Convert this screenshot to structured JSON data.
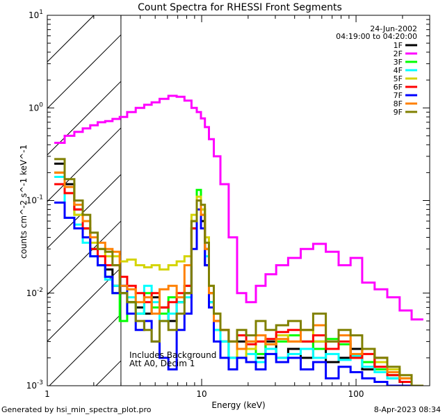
{
  "chart_data": {
    "type": "line",
    "title": "Count Spectra for RHESSI Front Segments",
    "xlabel": "Energy (keV)",
    "ylabel": "counts cm^-2 s^-1 keV^-1",
    "ylabel_parts": {
      "a": "counts cm",
      "e1": "-2",
      "b": " s",
      "e2": "-1",
      "c": " keV",
      "e3": "-1"
    },
    "xscale": "log",
    "yscale": "log",
    "xlim": [
      1,
      300
    ],
    "ylim": [
      0.001,
      10
    ],
    "x_ticks": [
      {
        "value": 1,
        "label": "1"
      },
      {
        "value": 10,
        "label": "10"
      },
      {
        "value": 100,
        "label": "100"
      }
    ],
    "y_ticks": [
      {
        "value": 0.001,
        "base": "10",
        "exp": "-3"
      },
      {
        "value": 0.01,
        "base": "10",
        "exp": "-2"
      },
      {
        "value": 0.1,
        "base": "10",
        "exp": "-1"
      },
      {
        "value": 1,
        "base": "10",
        "exp": "0"
      },
      {
        "value": 10,
        "base": "10",
        "exp": "1"
      }
    ],
    "excluded_region_keV": [
      1,
      3
    ],
    "legend_position": "top-right",
    "date": "24-Jun-2002",
    "time_range": "04:19:00 to 04:20:00",
    "annotations": [
      "Includes Background",
      "Att A0, Decim 1"
    ],
    "energy": [
      1.2,
      1.4,
      1.6,
      1.8,
      2.0,
      2.25,
      2.5,
      2.8,
      3.1,
      3.5,
      4.0,
      4.5,
      5.0,
      5.7,
      6.5,
      7.3,
      8.2,
      9.0,
      9.6,
      10.2,
      10.8,
      11.5,
      12.5,
      14,
      16,
      18,
      21,
      24,
      28,
      33,
      40,
      48,
      58,
      70,
      85,
      100,
      120,
      145,
      175,
      210,
      250
    ],
    "series": [
      {
        "name": "1F",
        "color": "#000000",
        "values": [
          0.25,
          0.15,
          0.08,
          0.05,
          0.03,
          0.02,
          0.018,
          0.012,
          0.01,
          0.008,
          0.007,
          0.006,
          0.009,
          0.007,
          0.005,
          0.008,
          0.01,
          0.05,
          0.1,
          0.06,
          0.02,
          0.008,
          0.005,
          0.003,
          0.002,
          0.003,
          0.0025,
          0.002,
          0.003,
          0.002,
          0.0025,
          0.002,
          0.003,
          0.0018,
          0.002,
          0.0025,
          0.0015,
          0.002,
          0.0012,
          0.0011,
          0.001
        ]
      },
      {
        "name": "2F",
        "color": "#ff00ff",
        "values": [
          0.42,
          0.5,
          0.55,
          0.6,
          0.65,
          0.7,
          0.72,
          0.76,
          0.8,
          0.9,
          1.0,
          1.08,
          1.15,
          1.25,
          1.35,
          1.32,
          1.2,
          1.0,
          0.9,
          0.77,
          0.62,
          0.46,
          0.3,
          0.15,
          0.04,
          0.01,
          0.008,
          0.012,
          0.016,
          0.02,
          0.024,
          0.03,
          0.034,
          0.028,
          0.02,
          0.024,
          0.013,
          0.011,
          0.009,
          0.0065,
          0.0052
        ]
      },
      {
        "name": "3F",
        "color": "#00ff00",
        "values": [
          0.2,
          0.14,
          0.07,
          0.05,
          0.03,
          0.02,
          0.015,
          0.01,
          0.005,
          0.008,
          0.006,
          0.01,
          0.007,
          0.006,
          0.009,
          0.008,
          0.012,
          0.06,
          0.13,
          0.08,
          0.03,
          0.01,
          0.004,
          0.003,
          0.002,
          0.0025,
          0.003,
          0.0022,
          0.0028,
          0.003,
          0.0035,
          0.003,
          0.0025,
          0.0032,
          0.0028,
          0.002,
          0.0018,
          0.0015,
          0.0013,
          0.0012,
          0.001
        ]
      },
      {
        "name": "4F",
        "color": "#00ffff",
        "values": [
          0.18,
          0.065,
          0.055,
          0.035,
          0.025,
          0.02,
          0.014,
          0.012,
          0.012,
          0.009,
          0.006,
          0.012,
          0.008,
          0.005,
          0.006,
          0.008,
          0.009,
          0.05,
          0.11,
          0.07,
          0.025,
          0.008,
          0.004,
          0.003,
          0.002,
          0.002,
          0.0022,
          0.0018,
          0.0025,
          0.002,
          0.0022,
          0.0025,
          0.002,
          0.0022,
          0.0019,
          0.0021,
          0.0016,
          0.0014,
          0.0012,
          0.0011,
          0.001
        ]
      },
      {
        "name": "5F",
        "color": "#d4d400",
        "values": [
          0.2,
          0.12,
          0.07,
          0.05,
          0.035,
          0.03,
          0.025,
          0.025,
          0.022,
          0.023,
          0.02,
          0.019,
          0.02,
          0.018,
          0.02,
          0.022,
          0.025,
          0.07,
          0.11,
          0.08,
          0.04,
          0.012,
          0.006,
          0.004,
          0.003,
          0.002,
          0.0025,
          0.003,
          0.0028,
          0.0035,
          0.003,
          0.004,
          0.003,
          0.0025,
          0.0035,
          0.002,
          0.0025,
          0.0018,
          0.0015,
          0.0012,
          0.001
        ]
      },
      {
        "name": "6F",
        "color": "#ff0000",
        "values": [
          0.15,
          0.12,
          0.08,
          0.05,
          0.03,
          0.025,
          0.02,
          0.02,
          0.015,
          0.012,
          0.01,
          0.008,
          0.01,
          0.007,
          0.008,
          0.01,
          0.012,
          0.05,
          0.1,
          0.07,
          0.03,
          0.01,
          0.005,
          0.004,
          0.003,
          0.0035,
          0.0028,
          0.003,
          0.0032,
          0.0038,
          0.004,
          0.003,
          0.0035,
          0.0025,
          0.003,
          0.002,
          0.0022,
          0.0016,
          0.0013,
          0.0011,
          0.001
        ]
      },
      {
        "name": "7F",
        "color": "#0000ff",
        "values": [
          0.095,
          0.065,
          0.05,
          0.04,
          0.025,
          0.02,
          0.015,
          0.01,
          0.012,
          0.006,
          0.004,
          0.005,
          0.003,
          0.002,
          0.0015,
          0.004,
          0.006,
          0.03,
          0.08,
          0.05,
          0.02,
          0.007,
          0.003,
          0.002,
          0.0015,
          0.002,
          0.0018,
          0.0015,
          0.0022,
          0.0018,
          0.002,
          0.0015,
          0.0018,
          0.0012,
          0.0016,
          0.0014,
          0.0012,
          0.0011,
          0.001,
          0.001,
          0.001
        ]
      },
      {
        "name": "8F",
        "color": "#ff8000",
        "values": [
          0.2,
          0.14,
          0.09,
          0.06,
          0.04,
          0.035,
          0.03,
          0.028,
          0.012,
          0.011,
          0.008,
          0.009,
          0.006,
          0.011,
          0.012,
          0.009,
          0.02,
          0.06,
          0.1,
          0.07,
          0.03,
          0.01,
          0.005,
          0.004,
          0.003,
          0.0025,
          0.003,
          0.0035,
          0.0028,
          0.0032,
          0.003,
          0.004,
          0.0045,
          0.003,
          0.0035,
          0.0022,
          0.0025,
          0.002,
          0.0014,
          0.0012,
          0.001
        ]
      },
      {
        "name": "9F",
        "color": "#808000",
        "values": [
          0.28,
          0.17,
          0.1,
          0.07,
          0.045,
          0.03,
          0.028,
          0.02,
          0.01,
          0.008,
          0.005,
          0.004,
          0.003,
          0.005,
          0.004,
          0.006,
          0.01,
          0.06,
          0.1,
          0.09,
          0.035,
          0.012,
          0.006,
          0.004,
          0.003,
          0.004,
          0.0035,
          0.005,
          0.004,
          0.0045,
          0.005,
          0.004,
          0.006,
          0.003,
          0.004,
          0.0035,
          0.0025,
          0.002,
          0.0016,
          0.0013,
          0.001
        ]
      }
    ]
  },
  "footer": {
    "generated_by": "Generated by hsi_min_spectra_plot.pro",
    "timestamp": "8-Apr-2023 08:34"
  }
}
